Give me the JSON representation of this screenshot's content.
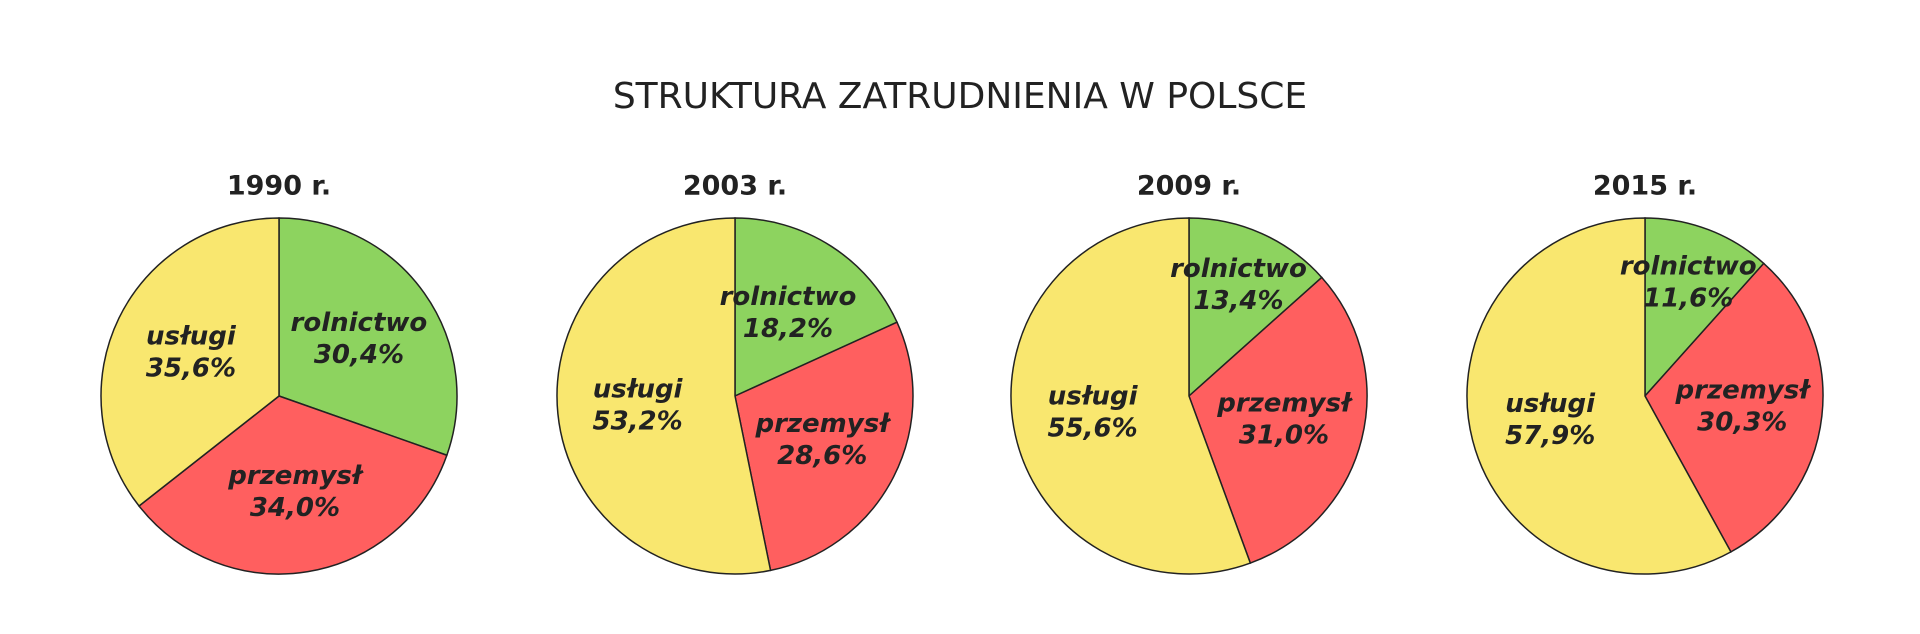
{
  "title": "STRUKTURA ZATRUDNIENIA W POLSCE",
  "chart_data": [
    {
      "type": "pie",
      "title": "1990 r.",
      "categories": [
        "rolnictwo",
        "przemysł",
        "usługi"
      ],
      "values": [
        30.4,
        34.0,
        35.6
      ],
      "value_labels": [
        "30,4%",
        "34,0%",
        "35,6%"
      ],
      "colors": [
        "#8dd35f",
        "#ff5f5f",
        "#f9e76f"
      ]
    },
    {
      "type": "pie",
      "title": "2003 r.",
      "categories": [
        "rolnictwo",
        "przemysł",
        "usługi"
      ],
      "values": [
        18.2,
        28.6,
        53.2
      ],
      "value_labels": [
        "18,2%",
        "28,6%",
        "53,2%"
      ],
      "colors": [
        "#8dd35f",
        "#ff5f5f",
        "#f9e76f"
      ]
    },
    {
      "type": "pie",
      "title": "2009 r.",
      "categories": [
        "rolnictwo",
        "przemysł",
        "usługi"
      ],
      "values": [
        13.4,
        31.0,
        55.6
      ],
      "value_labels": [
        "13,4%",
        "31,0%",
        "55,6%"
      ],
      "colors": [
        "#8dd35f",
        "#ff5f5f",
        "#f9e76f"
      ]
    },
    {
      "type": "pie",
      "title": "2015 r.",
      "categories": [
        "rolnictwo",
        "przemysł",
        "usługi"
      ],
      "values": [
        11.6,
        30.3,
        57.9
      ],
      "value_labels": [
        "11,6%",
        "30,3%",
        "57,9%"
      ],
      "colors": [
        "#8dd35f",
        "#ff5f5f",
        "#f9e76f"
      ]
    }
  ]
}
